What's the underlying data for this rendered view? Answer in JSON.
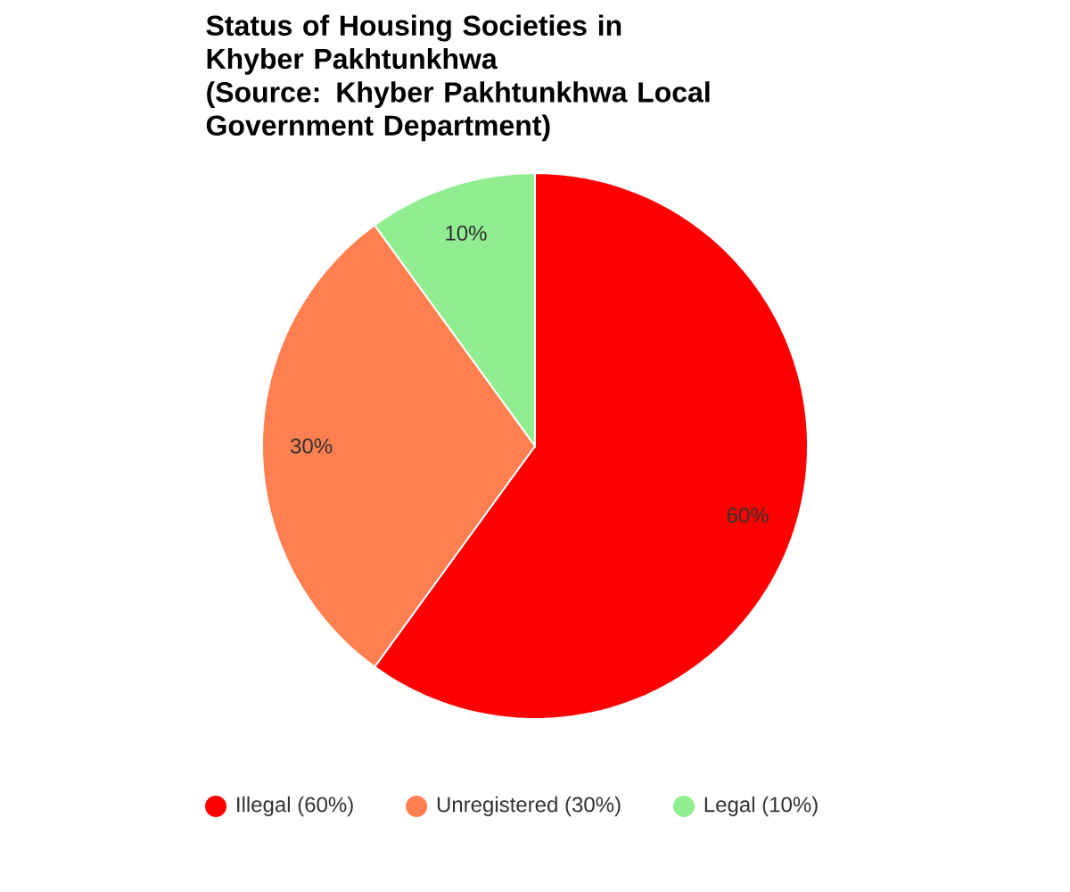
{
  "chart_data": {
    "type": "pie",
    "title": "Status of Housing Societies in Khyber Pakhtunkhwa",
    "subtitle": "(Source: Khyber Pakhtunkhwa Local Government Department)",
    "categories": [
      "Illegal (60%)",
      "Unregistered (30%)",
      "Legal (10%)"
    ],
    "values": [
      60,
      30,
      10
    ],
    "colors": [
      "#ff0000",
      "#ff7f50",
      "#90ee90"
    ],
    "value_labels": [
      "60%",
      "30%",
      "10%"
    ],
    "legend": "bottom"
  }
}
